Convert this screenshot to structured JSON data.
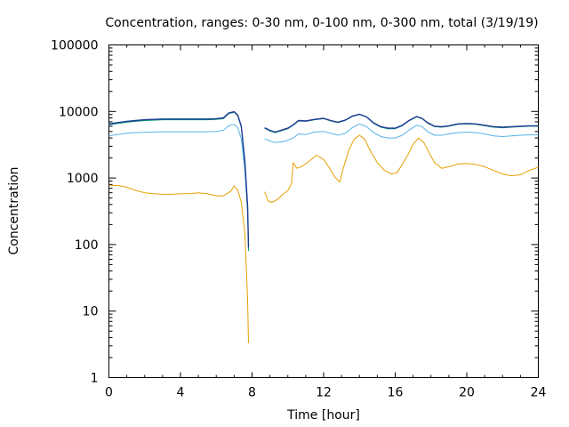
{
  "chart_data": {
    "type": "line",
    "title": "Concentration, ranges: 0-30 nm, 0-100 nm, 0-300 nm, total (3/19/19)",
    "xlabel": "Time [hour]",
    "ylabel": "Concentration",
    "xlim": [
      0,
      24
    ],
    "ylim": [
      1,
      100000
    ],
    "yscale": "log",
    "grid": false,
    "xticks": [
      "0",
      "4",
      "8",
      "12",
      "16",
      "20",
      "24"
    ],
    "yticks": [
      "1",
      "10",
      "100",
      "1000",
      "10000",
      "100000"
    ],
    "series": [
      {
        "color": "#e69f00",
        "segments": [
          [
            [
              0,
              780
            ],
            [
              0.5,
              770
            ],
            [
              1,
              730
            ],
            [
              1.5,
              650
            ],
            [
              2,
              600
            ],
            [
              2.5,
              580
            ],
            [
              3,
              570
            ],
            [
              3.5,
              570
            ],
            [
              4,
              580
            ],
            [
              4.5,
              580
            ],
            [
              5,
              600
            ],
            [
              5.5,
              580
            ],
            [
              6,
              540
            ],
            [
              6.4,
              540
            ],
            [
              6.8,
              630
            ],
            [
              7,
              760
            ],
            [
              7.2,
              660
            ],
            [
              7.4,
              430
            ],
            [
              7.6,
              150
            ],
            [
              7.75,
              15
            ],
            [
              7.8,
              3.3
            ]
          ],
          [
            [
              8.7,
              620
            ],
            [
              8.9,
              450
            ],
            [
              9.1,
              430
            ],
            [
              9.4,
              470
            ],
            [
              9.7,
              560
            ],
            [
              10,
              650
            ],
            [
              10.2,
              820
            ],
            [
              10.3,
              1700
            ],
            [
              10.5,
              1400
            ],
            [
              10.8,
              1500
            ],
            [
              11.2,
              1800
            ],
            [
              11.6,
              2200
            ],
            [
              12,
              1900
            ],
            [
              12.3,
              1450
            ],
            [
              12.6,
              1050
            ],
            [
              12.9,
              870
            ],
            [
              13.1,
              1400
            ],
            [
              13.4,
              2600
            ],
            [
              13.7,
              3800
            ],
            [
              14,
              4400
            ],
            [
              14.3,
              3800
            ],
            [
              14.6,
              2600
            ],
            [
              15,
              1700
            ],
            [
              15.4,
              1300
            ],
            [
              15.8,
              1150
            ],
            [
              16.1,
              1200
            ],
            [
              16.4,
              1600
            ],
            [
              16.7,
              2200
            ],
            [
              17,
              3200
            ],
            [
              17.3,
              4000
            ],
            [
              17.6,
              3400
            ],
            [
              17.9,
              2400
            ],
            [
              18.2,
              1700
            ],
            [
              18.6,
              1400
            ],
            [
              19,
              1480
            ],
            [
              19.5,
              1620
            ],
            [
              20,
              1650
            ],
            [
              20.5,
              1600
            ],
            [
              21,
              1480
            ],
            [
              21.5,
              1300
            ],
            [
              22,
              1150
            ],
            [
              22.5,
              1080
            ],
            [
              23,
              1120
            ],
            [
              23.5,
              1300
            ],
            [
              24,
              1450
            ]
          ]
        ]
      },
      {
        "color": "#56b4e9",
        "segments": [
          [
            [
              0,
              4300
            ],
            [
              0.5,
              4500
            ],
            [
              1,
              4700
            ],
            [
              1.5,
              4800
            ],
            [
              2,
              4850
            ],
            [
              2.5,
              4900
            ],
            [
              3,
              4950
            ],
            [
              3.5,
              4950
            ],
            [
              4,
              4950
            ],
            [
              4.5,
              4950
            ],
            [
              5,
              4950
            ],
            [
              5.5,
              4950
            ],
            [
              6,
              5000
            ],
            [
              6.4,
              5200
            ],
            [
              6.7,
              6100
            ],
            [
              7,
              6400
            ],
            [
              7.2,
              5700
            ],
            [
              7.4,
              3900
            ],
            [
              7.6,
              1300
            ],
            [
              7.75,
              300
            ],
            [
              7.8,
              110
            ]
          ],
          [
            [
              8.7,
              3900
            ],
            [
              9,
              3600
            ],
            [
              9.3,
              3400
            ],
            [
              9.7,
              3500
            ],
            [
              10,
              3700
            ],
            [
              10.3,
              4000
            ],
            [
              10.6,
              4600
            ],
            [
              11,
              4500
            ],
            [
              11.5,
              4900
            ],
            [
              12,
              5000
            ],
            [
              12.4,
              4700
            ],
            [
              12.8,
              4400
            ],
            [
              13.2,
              4700
            ],
            [
              13.6,
              5700
            ],
            [
              14,
              6500
            ],
            [
              14.4,
              5900
            ],
            [
              14.8,
              4800
            ],
            [
              15.2,
              4200
            ],
            [
              15.6,
              4000
            ],
            [
              16,
              4000
            ],
            [
              16.4,
              4400
            ],
            [
              16.8,
              5300
            ],
            [
              17.2,
              6200
            ],
            [
              17.5,
              5900
            ],
            [
              17.8,
              5000
            ],
            [
              18.2,
              4400
            ],
            [
              18.6,
              4400
            ],
            [
              19,
              4600
            ],
            [
              19.5,
              4800
            ],
            [
              20,
              4900
            ],
            [
              20.5,
              4800
            ],
            [
              21,
              4600
            ],
            [
              21.5,
              4300
            ],
            [
              22,
              4200
            ],
            [
              22.5,
              4300
            ],
            [
              23,
              4400
            ],
            [
              23.5,
              4450
            ],
            [
              24,
              4450
            ]
          ]
        ]
      },
      {
        "color": "#009e73",
        "segments": [
          [
            [
              0,
              6300
            ],
            [
              0.5,
              6600
            ],
            [
              1,
              6900
            ],
            [
              1.5,
              7100
            ],
            [
              2,
              7300
            ],
            [
              2.5,
              7400
            ],
            [
              3,
              7500
            ],
            [
              3.5,
              7500
            ],
            [
              4,
              7500
            ],
            [
              4.5,
              7500
            ],
            [
              5,
              7500
            ],
            [
              5.5,
              7500
            ],
            [
              6,
              7600
            ],
            [
              6.4,
              7800
            ],
            [
              6.7,
              9300
            ],
            [
              7,
              9700
            ],
            [
              7.2,
              8600
            ],
            [
              7.4,
              5800
            ],
            [
              7.6,
              1700
            ],
            [
              7.75,
              350
            ],
            [
              7.8,
              80
            ]
          ],
          [
            [
              8.7,
              5600
            ],
            [
              9,
              5100
            ],
            [
              9.3,
              4800
            ],
            [
              9.7,
              5200
            ],
            [
              10,
              5500
            ],
            [
              10.3,
              6200
            ],
            [
              10.6,
              7200
            ],
            [
              11,
              7100
            ],
            [
              11.5,
              7500
            ],
            [
              12,
              7800
            ],
            [
              12.4,
              7200
            ],
            [
              12.8,
              6800
            ],
            [
              13.2,
              7300
            ],
            [
              13.6,
              8400
            ],
            [
              14,
              9000
            ],
            [
              14.4,
              8200
            ],
            [
              14.8,
              6600
            ],
            [
              15.2,
              5800
            ],
            [
              15.6,
              5500
            ],
            [
              16,
              5500
            ],
            [
              16.4,
              6100
            ],
            [
              16.8,
              7300
            ],
            [
              17.2,
              8300
            ],
            [
              17.5,
              7800
            ],
            [
              17.8,
              6700
            ],
            [
              18.2,
              5900
            ],
            [
              18.6,
              5800
            ],
            [
              19,
              6000
            ],
            [
              19.5,
              6400
            ],
            [
              20,
              6500
            ],
            [
              20.5,
              6400
            ],
            [
              21,
              6100
            ],
            [
              21.5,
              5800
            ],
            [
              22,
              5700
            ],
            [
              22.5,
              5800
            ],
            [
              23,
              5900
            ],
            [
              23.5,
              6000
            ],
            [
              24,
              6000
            ]
          ]
        ]
      },
      {
        "color": "#1f3a93",
        "segments": [
          [
            [
              0,
              6500
            ],
            [
              0.5,
              6800
            ],
            [
              1,
              7100
            ],
            [
              1.5,
              7300
            ],
            [
              2,
              7500
            ],
            [
              2.5,
              7600
            ],
            [
              3,
              7700
            ],
            [
              3.5,
              7700
            ],
            [
              4,
              7700
            ],
            [
              4.5,
              7700
            ],
            [
              5,
              7700
            ],
            [
              5.5,
              7700
            ],
            [
              6,
              7800
            ],
            [
              6.4,
              8000
            ],
            [
              6.7,
              9500
            ],
            [
              7,
              9900
            ],
            [
              7.2,
              8800
            ],
            [
              7.4,
              6000
            ],
            [
              7.6,
              1800
            ],
            [
              7.75,
              380
            ],
            [
              7.8,
              90
            ]
          ],
          [
            [
              8.7,
              5700
            ],
            [
              9,
              5200
            ],
            [
              9.3,
              4900
            ],
            [
              9.7,
              5300
            ],
            [
              10,
              5600
            ],
            [
              10.3,
              6300
            ],
            [
              10.6,
              7300
            ],
            [
              11,
              7200
            ],
            [
              11.5,
              7600
            ],
            [
              12,
              7900
            ],
            [
              12.4,
              7300
            ],
            [
              12.8,
              6900
            ],
            [
              13.2,
              7400
            ],
            [
              13.6,
              8500
            ],
            [
              14,
              9100
            ],
            [
              14.4,
              8300
            ],
            [
              14.8,
              6700
            ],
            [
              15.2,
              5900
            ],
            [
              15.6,
              5600
            ],
            [
              16,
              5600
            ],
            [
              16.4,
              6200
            ],
            [
              16.8,
              7400
            ],
            [
              17.2,
              8400
            ],
            [
              17.5,
              7900
            ],
            [
              17.8,
              6800
            ],
            [
              18.2,
              6000
            ],
            [
              18.6,
              5900
            ],
            [
              19,
              6100
            ],
            [
              19.5,
              6500
            ],
            [
              20,
              6600
            ],
            [
              20.5,
              6500
            ],
            [
              21,
              6200
            ],
            [
              21.5,
              5900
            ],
            [
              22,
              5800
            ],
            [
              22.5,
              5900
            ],
            [
              23,
              6000
            ],
            [
              23.5,
              6100
            ],
            [
              24,
              6100
            ]
          ]
        ]
      }
    ]
  }
}
